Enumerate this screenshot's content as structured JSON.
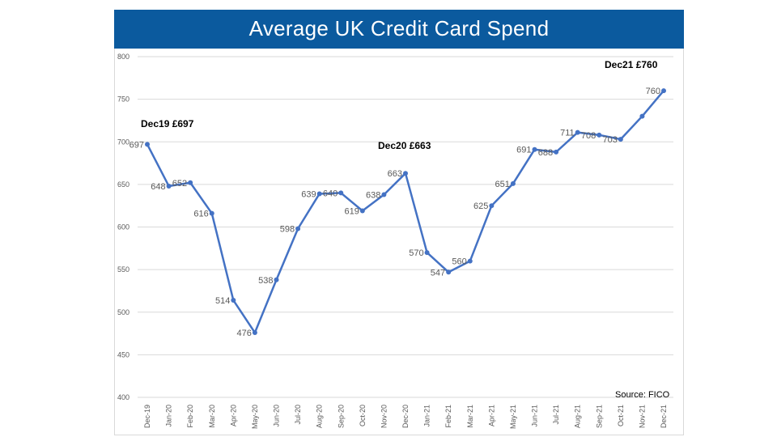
{
  "chart_data": {
    "type": "line",
    "title": "Average UK Credit Card Spend",
    "categories": [
      "Dec-19",
      "Jan-20",
      "Feb-20",
      "Mar-20",
      "Apr-20",
      "May-20",
      "Jun-20",
      "Jul-20",
      "Aug-20",
      "Sep-20",
      "Oct-20",
      "Nov-20",
      "Dec-20",
      "Jan-21",
      "Feb-21",
      "Mar-21",
      "Apr-21",
      "May-21",
      "Jun-21",
      "Jul-21",
      "Aug-21",
      "Sep-21",
      "Oct-21",
      "Nov-21",
      "Dec-21"
    ],
    "values": [
      697,
      648,
      652,
      616,
      514,
      476,
      538,
      598,
      639,
      640,
      619,
      638,
      663,
      570,
      547,
      560,
      625,
      651,
      691,
      688,
      711,
      708,
      703,
      730,
      760
    ],
    "data_labels": [
      "697",
      "648",
      "652",
      "616",
      "514",
      "476",
      "538",
      "598",
      "639",
      "640",
      "619",
      "638",
      "663",
      "570",
      "547",
      "560",
      "625",
      "651",
      "691",
      "688",
      "711",
      "708",
      "703",
      null,
      "760"
    ],
    "ylim": [
      400,
      800
    ],
    "yticks": [
      "400",
      "450",
      "500",
      "550",
      "600",
      "650",
      "700",
      "750",
      "800"
    ],
    "grid": true,
    "line_color": "#4472c4",
    "annotations": [
      {
        "text": "Dec19 £697",
        "category": "Dec-19"
      },
      {
        "text": "Dec20 £663",
        "category": "Dec-20"
      },
      {
        "text": "Dec21 £760",
        "category": "Dec-21"
      }
    ],
    "source": "Source: FICO"
  },
  "colors": {
    "title_bar": "#0b5a9e"
  }
}
